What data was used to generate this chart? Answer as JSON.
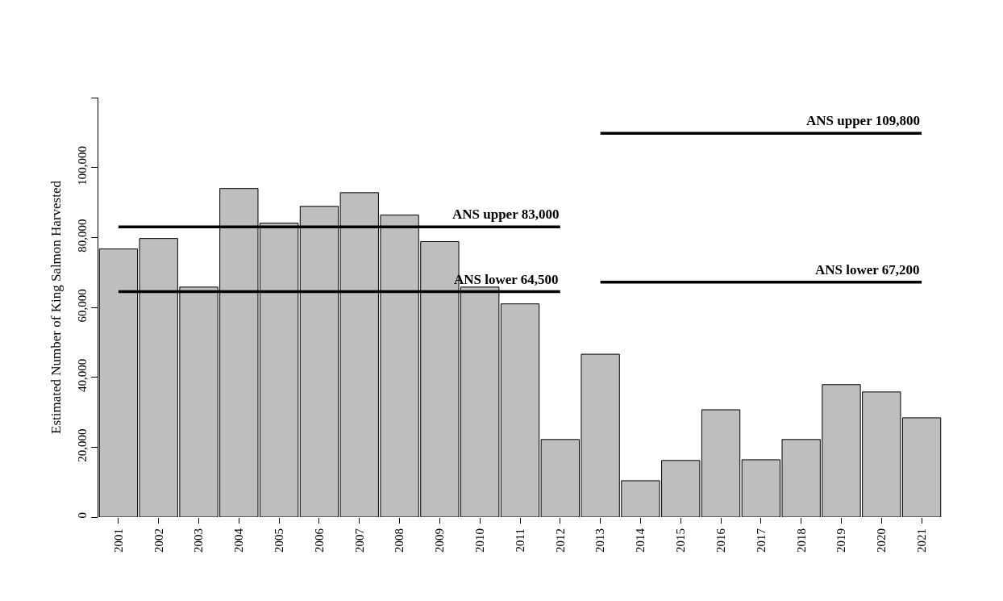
{
  "chart_data": {
    "type": "bar",
    "ylabel": "Estimated Number of King Salmon Harvested",
    "categories": [
      "2001",
      "2002",
      "2003",
      "2004",
      "2005",
      "2006",
      "2007",
      "2008",
      "2009",
      "2010",
      "2011",
      "2012",
      "2013",
      "2014",
      "2015",
      "2016",
      "2017",
      "2018",
      "2019",
      "2020",
      "2021"
    ],
    "series": [
      {
        "color": "#bebebe",
        "values": [
          76700,
          79700,
          65800,
          94000,
          84100,
          88900,
          92800,
          86400,
          78800,
          65800,
          61000,
          22200,
          46600,
          10400,
          16200,
          30700,
          16400,
          22200,
          37900,
          35800,
          28400
        ]
      },
      {
        "type": "line",
        "name": "ANS upper 83,000",
        "color": "#000000",
        "values": [
          83000,
          83000,
          83000,
          83000,
          83000,
          83000,
          83000,
          83000,
          83000,
          83000,
          83000,
          83000,
          null,
          null,
          null,
          null,
          null,
          null,
          null,
          null,
          null
        ]
      },
      {
        "type": "line",
        "name": "ANS lower 64,500",
        "color": "#000000",
        "values": [
          64500,
          64500,
          64500,
          64500,
          64500,
          64500,
          64500,
          64500,
          64500,
          64500,
          64500,
          64500,
          null,
          null,
          null,
          null,
          null,
          null,
          null,
          null,
          null
        ]
      },
      {
        "type": "line",
        "name": "ANS upper 109,800",
        "color": "#000000",
        "values": [
          null,
          null,
          null,
          null,
          null,
          null,
          null,
          null,
          null,
          null,
          null,
          null,
          109800,
          109800,
          109800,
          109800,
          109800,
          109800,
          109800,
          109800,
          109800
        ]
      },
      {
        "type": "line",
        "name": "ANS lower 67,200",
        "color": "#000000",
        "values": [
          null,
          null,
          null,
          null,
          null,
          null,
          null,
          null,
          null,
          null,
          null,
          null,
          67200,
          67200,
          67200,
          67200,
          67200,
          67200,
          67200,
          67200,
          67200
        ]
      }
    ],
    "ylim": [
      0,
      120000
    ],
    "yticks": [
      0,
      {
        "value": 20000,
        "label": "20,000"
      },
      {
        "value": 40000,
        "label": "40,000"
      },
      {
        "value": 60000,
        "label": "60,000"
      },
      {
        "value": 80000,
        "label": "80,000"
      },
      {
        "value": 100000,
        "label": "100,000"
      },
      {
        "value": 120000,
        "label": null
      }
    ],
    "grid": false,
    "legend": false,
    "marker": "none",
    "line_style": "solid"
  }
}
